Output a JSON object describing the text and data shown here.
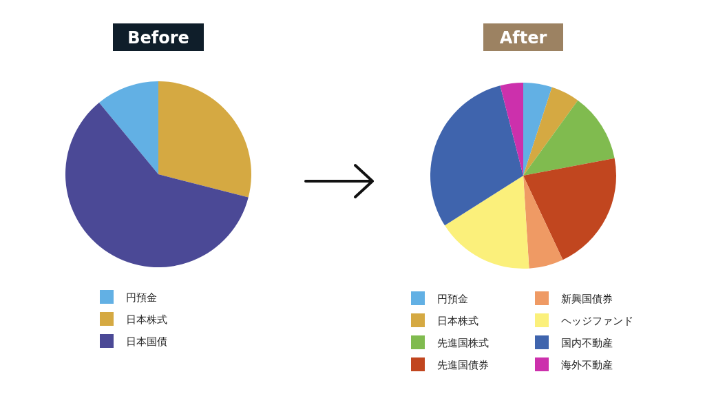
{
  "chart_data": [
    {
      "type": "pie",
      "title": "Before",
      "categories": [
        "円預金",
        "日本株式",
        "日本国債"
      ],
      "values": [
        11,
        29,
        60
      ],
      "colors": [
        "#62b0e4",
        "#d5a942",
        "#4b4996"
      ],
      "legend": "bottom"
    },
    {
      "type": "pie",
      "title": "After",
      "categories": [
        "円預金",
        "日本株式",
        "先進国株式",
        "先進国債券",
        "新興国債券",
        "ヘッジファンド",
        "国内不動産",
        "海外不動産"
      ],
      "values": [
        5,
        5,
        12,
        21,
        6,
        17,
        30,
        4
      ],
      "colors": [
        "#62b0e4",
        "#d5a942",
        "#80bb4f",
        "#c1461f",
        "#ef9a64",
        "#fbf07b",
        "#3f64ad",
        "#cc30ac"
      ],
      "legend": "bottom"
    }
  ]
}
